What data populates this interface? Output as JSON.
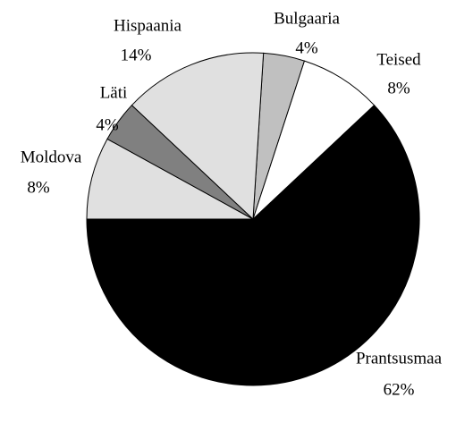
{
  "chart_data": {
    "type": "pie",
    "categories": [
      "Bulgaaria",
      "Teised",
      "Prantsusmaa",
      "Moldova",
      "Läti",
      "Hispaania"
    ],
    "values": [
      4,
      8,
      62,
      8,
      4,
      14
    ],
    "value_labels": [
      "4%",
      "8%",
      "62%",
      "8%",
      "4%",
      "14%"
    ],
    "colors": [
      "#c0c0c0",
      "#ffffff",
      "#000000",
      "#e0e0e0",
      "#808080",
      "#e0e0e0"
    ]
  }
}
